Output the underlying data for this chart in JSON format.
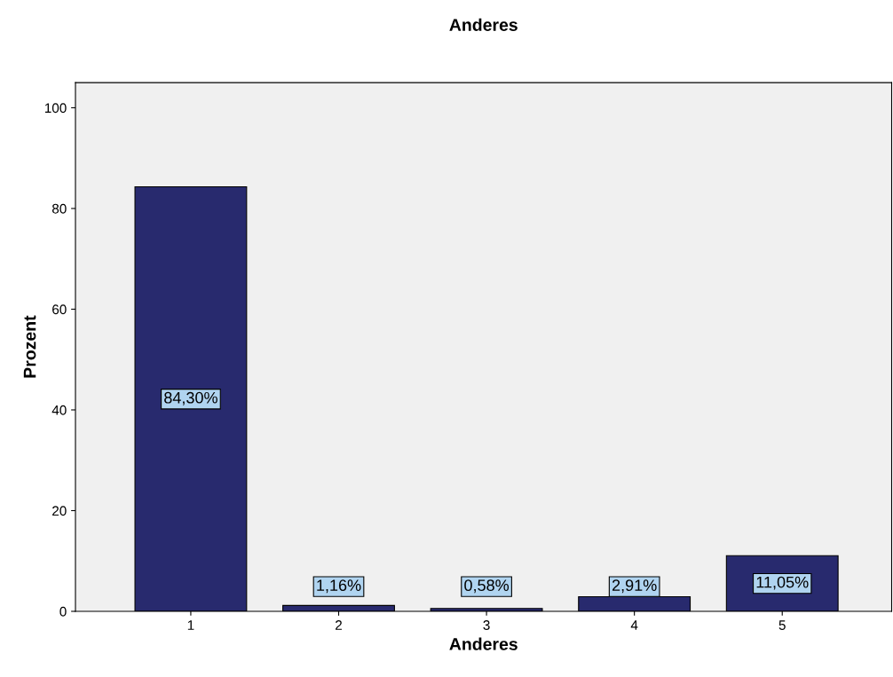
{
  "chart_data": {
    "type": "bar",
    "title": "Anderes",
    "xlabel": "Anderes",
    "ylabel": "Prozent",
    "categories": [
      "1",
      "2",
      "3",
      "4",
      "5"
    ],
    "values": [
      84.3,
      1.16,
      0.58,
      2.91,
      11.05
    ],
    "value_labels": [
      "84,30%",
      "1,16%",
      "0,58%",
      "2,91%",
      "11,05%"
    ],
    "color": "#282a6e",
    "ylim": [
      0,
      105
    ],
    "yticks": [
      0,
      20,
      40,
      60,
      80,
      100
    ],
    "grid": false,
    "legend": false
  }
}
